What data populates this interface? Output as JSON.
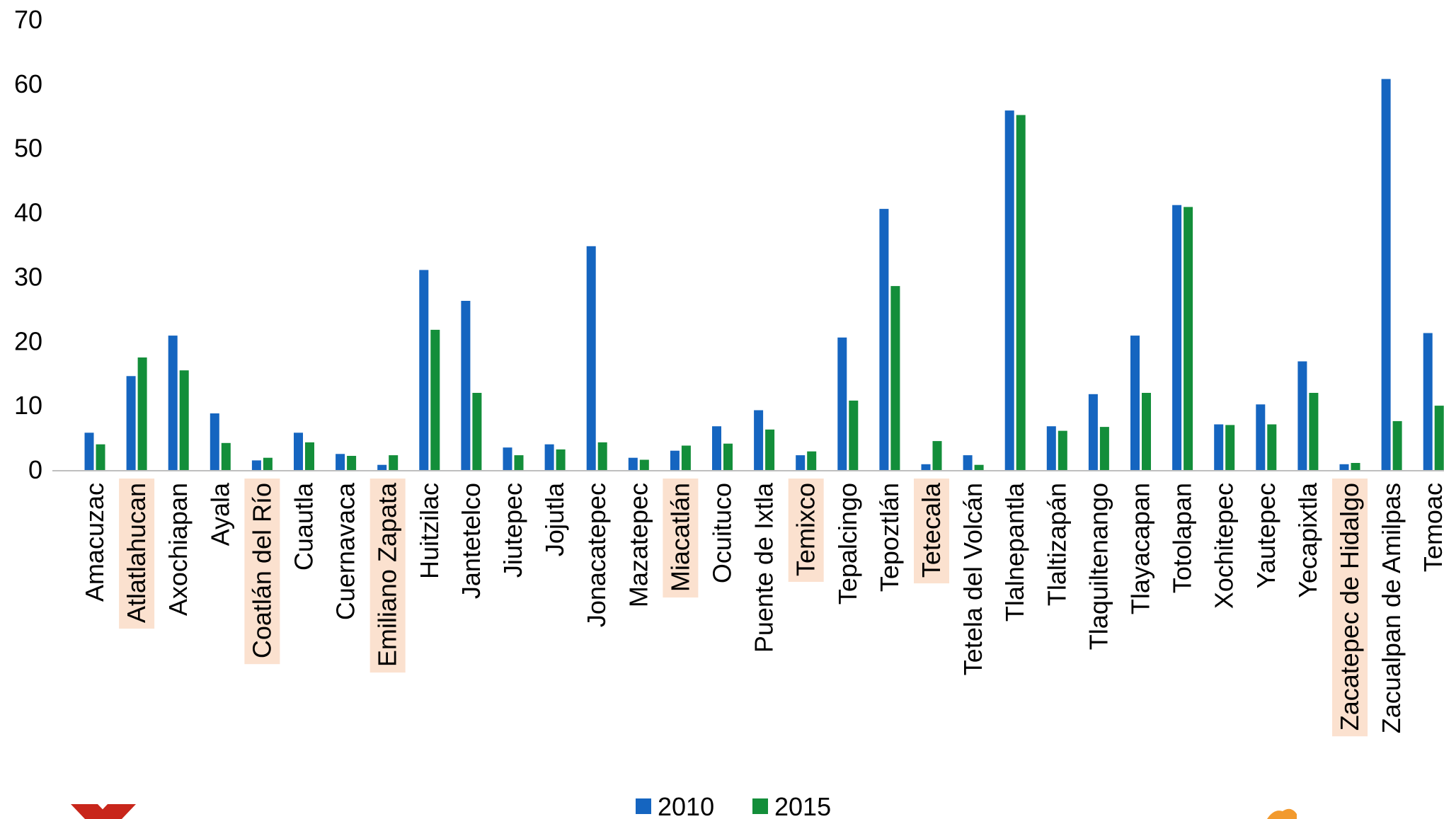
{
  "chart_data": {
    "type": "bar",
    "categories": [
      "Amacuzac",
      "Atlatlahucan",
      "Axochiapan",
      "Ayala",
      "Coatlán del Río",
      "Cuautla",
      "Cuernavaca",
      "Emiliano Zapata",
      "Huitzilac",
      "Jantetelco",
      "Jiutepec",
      "Jojutla",
      "Jonacatepec",
      "Mazatepec",
      "Miacatlán",
      "Ocuituco",
      "Puente de Ixtla",
      "Temixco",
      "Tepalcingo",
      "Tepoztlán",
      "Tetecala",
      "Tetela del Volcán",
      "Tlalnepantla",
      "Tlaltizapán",
      "Tlaquiltenango",
      "Tlayacapan",
      "Totolapan",
      "Xochitepec",
      "Yautepec",
      "Yecapixtla",
      "Zacatepec de Hidalgo",
      "Zacualpan de Amilpas",
      "Temoac"
    ],
    "highlighted_categories": [
      "Atlatlahucan",
      "Coatlán del Río",
      "Emiliano Zapata",
      "Miacatlán",
      "Temixco",
      "Tetecala",
      "Zacatepec de Hidalgo"
    ],
    "series": [
      {
        "name": "2010",
        "color": "#1565C0",
        "values": [
          5.8,
          14.6,
          20.9,
          8.8,
          1.5,
          5.8,
          2.5,
          0.8,
          31.1,
          26.3,
          3.5,
          4.0,
          34.8,
          1.9,
          3.0,
          6.8,
          9.3,
          2.3,
          20.6,
          40.6,
          0.9,
          2.3,
          55.9,
          6.8,
          11.8,
          20.9,
          41.2,
          7.1,
          10.2,
          16.9,
          0.9,
          60.8,
          21.3
        ]
      },
      {
        "name": "2015",
        "color": "#138E3A",
        "values": [
          4.0,
          17.5,
          15.5,
          4.2,
          1.9,
          4.3,
          2.2,
          2.3,
          21.8,
          12.0,
          2.3,
          3.2,
          4.3,
          1.6,
          3.8,
          4.1,
          6.3,
          2.9,
          10.8,
          28.6,
          4.5,
          0.8,
          55.2,
          6.1,
          6.7,
          12.0,
          40.9,
          7.0,
          7.1,
          12.0,
          1.1,
          7.6,
          10.0
        ]
      }
    ],
    "ylim": [
      0,
      70
    ],
    "yticks": [
      "0",
      "10",
      "20",
      "30",
      "40",
      "50",
      "60",
      "70"
    ],
    "highlight_color": "#FBE1CF",
    "legend_position": "bottom-center",
    "grid": false
  }
}
